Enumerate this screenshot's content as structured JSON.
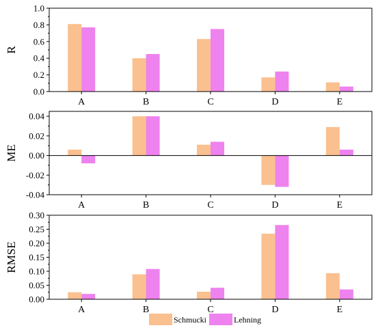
{
  "legend": [
    {
      "name": "Schmucki",
      "color": "#FBC08F"
    },
    {
      "name": "Lehning",
      "color": "#EE82EE"
    }
  ],
  "chart_data": [
    {
      "type": "bar",
      "ylabel": "R",
      "categories": [
        "A",
        "B",
        "C",
        "D",
        "E"
      ],
      "ylim": [
        0.0,
        1.0
      ],
      "yticks": [
        "0.0",
        "0.2",
        "0.4",
        "0.6",
        "0.8",
        "1.0"
      ],
      "series": [
        {
          "name": "Schmucki",
          "values": [
            0.81,
            0.4,
            0.63,
            0.17,
            0.11
          ]
        },
        {
          "name": "Lehning",
          "values": [
            0.77,
            0.45,
            0.75,
            0.24,
            0.06
          ]
        }
      ],
      "zero_line": false
    },
    {
      "type": "bar",
      "ylabel": "ME",
      "categories": [
        "A",
        "B",
        "C",
        "D",
        "E"
      ],
      "ylim": [
        -0.04,
        0.045
      ],
      "yticks": [
        "-0.04",
        "-0.02",
        "0.00",
        "0.02",
        "0.04"
      ],
      "series": [
        {
          "name": "Schmucki",
          "values": [
            0.006,
            0.04,
            0.011,
            -0.03,
            0.029
          ]
        },
        {
          "name": "Lehning",
          "values": [
            -0.008,
            0.04,
            0.014,
            -0.032,
            0.006
          ]
        }
      ],
      "zero_line": true
    },
    {
      "type": "bar",
      "ylabel": "RMSE",
      "categories": [
        "A",
        "B",
        "C",
        "D",
        "E"
      ],
      "ylim": [
        0.0,
        0.3
      ],
      "yticks": [
        "0.00",
        "0.05",
        "0.10",
        "0.15",
        "0.20",
        "0.25",
        "0.30"
      ],
      "series": [
        {
          "name": "Schmucki",
          "values": [
            0.025,
            0.089,
            0.027,
            0.234,
            0.093
          ]
        },
        {
          "name": "Lehning",
          "values": [
            0.019,
            0.108,
            0.041,
            0.265,
            0.035
          ]
        }
      ],
      "zero_line": false
    }
  ]
}
